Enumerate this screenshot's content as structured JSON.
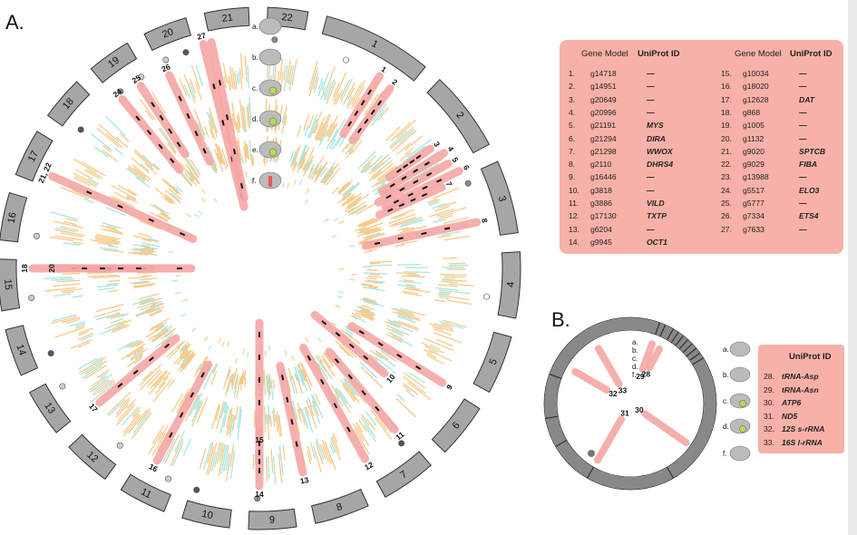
{
  "panels": {
    "a": "A.",
    "b": "B."
  },
  "track_labels": [
    "a.",
    "b.",
    "c.",
    "d.",
    "e.",
    "f."
  ],
  "track_labels_b": [
    "a.",
    "b.",
    "c.",
    "d.",
    "f."
  ],
  "chromosomes": [
    "1",
    "2",
    "3",
    "4",
    "5",
    "6",
    "7",
    "8",
    "9",
    "10",
    "11",
    "12",
    "13",
    "14",
    "15",
    "16",
    "17",
    "18",
    "19",
    "20",
    "21",
    "22"
  ],
  "gene_numbers": [
    "1",
    "2",
    "3",
    "4",
    "5",
    "6",
    "7",
    "8",
    "9",
    "10",
    "11",
    "12",
    "13",
    "14",
    "15",
    "16",
    "17",
    "18",
    "19",
    "20",
    "21, 22",
    "23",
    "24",
    "25",
    "26",
    "27"
  ],
  "table_a": {
    "headers": [
      "Gene Model",
      "UniProt ID",
      "Gene Model",
      "UniProt ID"
    ],
    "left": [
      {
        "n": "1.",
        "g": "g14718",
        "u": "—"
      },
      {
        "n": "2.",
        "g": "g14951",
        "u": "—"
      },
      {
        "n": "3.",
        "g": "g20649",
        "u": "—"
      },
      {
        "n": "4.",
        "g": "g20996",
        "u": "—"
      },
      {
        "n": "5.",
        "g": "g21191",
        "u": "MYS"
      },
      {
        "n": "6.",
        "g": "g21294",
        "u": "DIRA"
      },
      {
        "n": "7.",
        "g": "g21298",
        "u": "WWOX"
      },
      {
        "n": "8.",
        "g": "g2110",
        "u": "DHRS4"
      },
      {
        "n": "9.",
        "g": "g16446",
        "u": "—"
      },
      {
        "n": "10.",
        "g": "g3818",
        "u": "—"
      },
      {
        "n": "11.",
        "g": "g3886",
        "u": "VILD"
      },
      {
        "n": "12.",
        "g": "g17130",
        "u": "TXTP"
      },
      {
        "n": "13.",
        "g": "g6204",
        "u": "—"
      },
      {
        "n": "14.",
        "g": "g9945",
        "u": "OCT1"
      }
    ],
    "right": [
      {
        "n": "15.",
        "g": "g10034",
        "u": "—"
      },
      {
        "n": "16.",
        "g": "g18020",
        "u": "—"
      },
      {
        "n": "17.",
        "g": "g12628",
        "u": "DAT"
      },
      {
        "n": "18.",
        "g": "g868",
        "u": "—"
      },
      {
        "n": "19.",
        "g": "g1005",
        "u": "—"
      },
      {
        "n": "20.",
        "g": "g1132",
        "u": "—"
      },
      {
        "n": "21.",
        "g": "g9020",
        "u": "SPTCB"
      },
      {
        "n": "22.",
        "g": "g9029",
        "u": "FIBA"
      },
      {
        "n": "23.",
        "g": "g13988",
        "u": "—"
      },
      {
        "n": "24.",
        "g": "g5517",
        "u": "ELO3"
      },
      {
        "n": "25.",
        "g": "g5777",
        "u": "—"
      },
      {
        "n": "26.",
        "g": "g7334",
        "u": "ETS4"
      },
      {
        "n": "27.",
        "g": "g7633",
        "u": "—"
      }
    ]
  },
  "table_b": {
    "header": "UniProt ID",
    "rows": [
      {
        "n": "28.",
        "u": "tRNA-Asp"
      },
      {
        "n": "29.",
        "u": "tRNA-Asn"
      },
      {
        "n": "30.",
        "u": "ATP6"
      },
      {
        "n": "31.",
        "u": "ND5"
      },
      {
        "n": "32.",
        "u": "12S s-rRNA"
      },
      {
        "n": "33.",
        "u": "16S l-rRNA"
      }
    ]
  },
  "mito_numbers": [
    "28",
    "29",
    "30",
    "31",
    "32",
    "33"
  ],
  "colors": {
    "chrom": "#a6a6a6",
    "orange": "#f7c98a",
    "cyan": "#a6e6e3",
    "link": "#f6a7a5",
    "table": "#f8b1a8",
    "marker": "#111111"
  }
}
